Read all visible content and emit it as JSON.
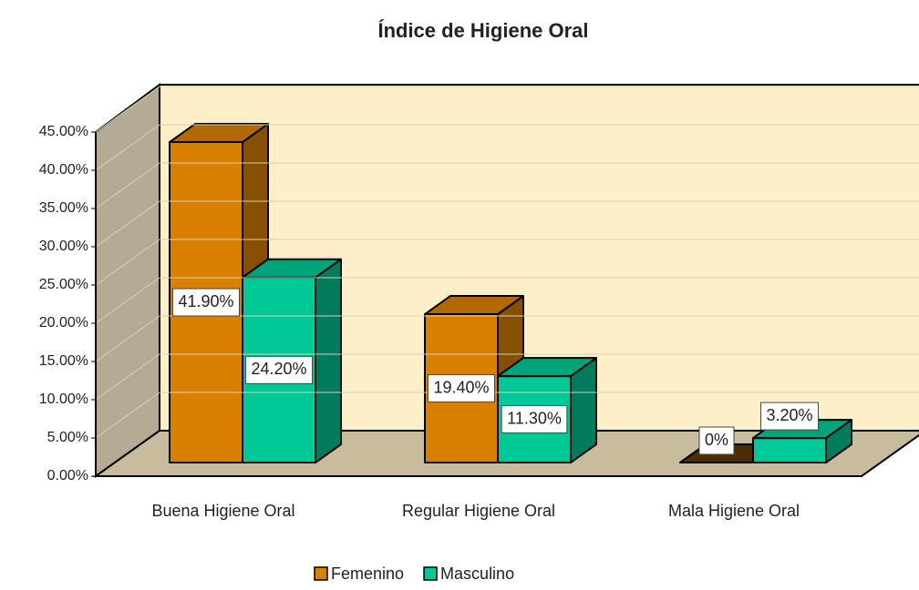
{
  "chart_data": {
    "type": "bar3d",
    "title": "Índice de Higiene Oral",
    "categories": [
      "Buena Higiene Oral",
      "Regular Higiene Oral",
      "Mala Higiene Oral"
    ],
    "series": [
      {
        "name": "Femenino",
        "color": "#d98000",
        "values": [
          41.9,
          19.4,
          0
        ],
        "value_labels": [
          "41.90%",
          "19.40%",
          "0%"
        ]
      },
      {
        "name": "Masculino",
        "color": "#00c896",
        "values": [
          24.2,
          11.3,
          3.2
        ],
        "value_labels": [
          "24.20%",
          "11.30%",
          "3.20%"
        ]
      }
    ],
    "ylim": [
      0,
      45
    ],
    "yticks": [
      {
        "value": 0,
        "label": "0.00%"
      },
      {
        "value": 5,
        "label": "5.00%"
      },
      {
        "value": 10,
        "label": "10.00%"
      },
      {
        "value": 15,
        "label": "15.00%"
      },
      {
        "value": 20,
        "label": "20.00%"
      },
      {
        "value": 25,
        "label": "25.00%"
      },
      {
        "value": 30,
        "label": "30.00%"
      },
      {
        "value": 35,
        "label": "35.00%"
      },
      {
        "value": 40,
        "label": "40.00%"
      },
      {
        "value": 45,
        "label": "45.00%"
      }
    ],
    "grid": true,
    "legend": "bottom"
  }
}
